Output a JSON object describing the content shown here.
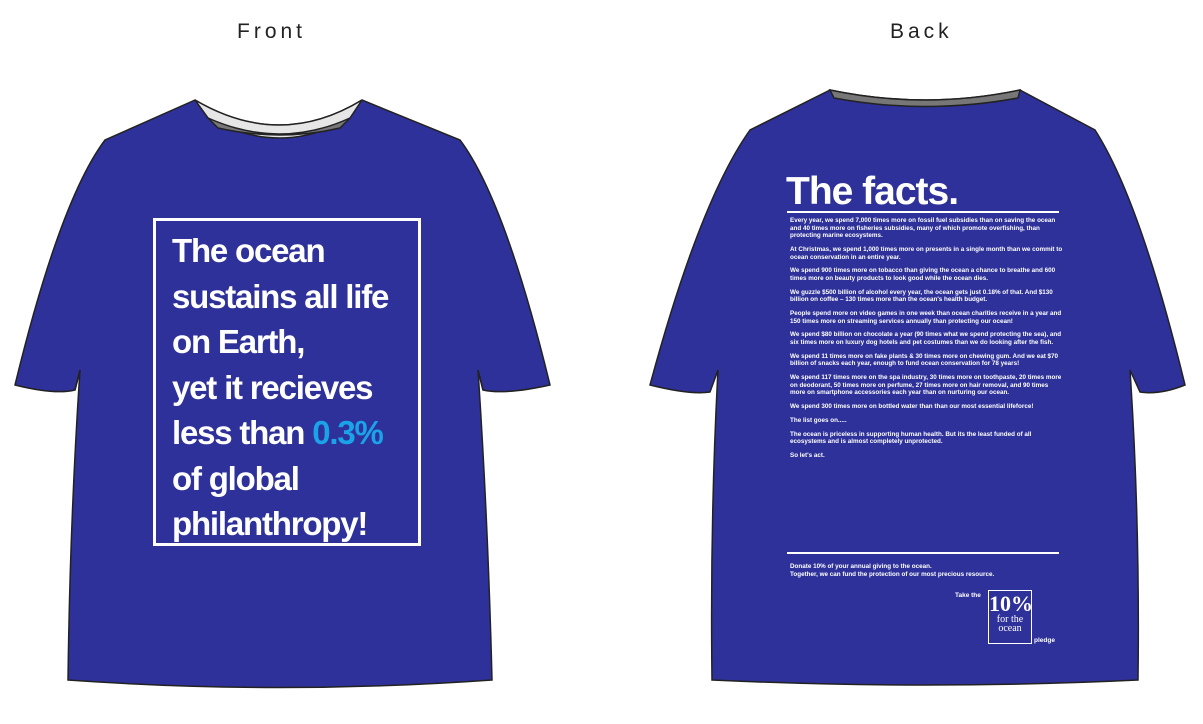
{
  "labels": {
    "front": "Front",
    "back": "Back"
  },
  "colors": {
    "shirt": "#2e3199",
    "highlight": "#1aa3e8",
    "text": "#ffffff"
  },
  "front": {
    "lines": [
      "The ocean",
      "sustains all life",
      "on Earth,",
      "yet it recieves"
    ],
    "line5_prefix": "less than ",
    "highlight": "0.3%",
    "lines_after": [
      "of global",
      "philanthropy!"
    ]
  },
  "back": {
    "title": "The facts.",
    "facts": [
      "Every year, we spend 7,000 times more on fossil fuel subsidies than on saving the ocean and 40 times more on fisheries subsidies, many of which promote overfishing, than protecting marine ecosystems.",
      "At Christmas, we spend 1,000 times more on presents in a single month than we commit to ocean conservation in an entire year.",
      "We spend 900 times more on tobacco than giving the ocean a chance to breathe and 600 times more on beauty products to look good while the ocean dies.",
      "We guzzle $500 billion of alcohol every year, the ocean gets just 0.18% of that.  And $130 billion on coffee – 130 times more than the ocean's health budget.",
      "People spend more on video games in one week than ocean charities receive in a year and 150 times more on streaming services annually than protecting our ocean!",
      "We spend $80 billion on chocolate a year (90 times what we spend protecting the sea), and six times more on luxury dog hotels and pet costumes than we do looking after the fish.",
      "We spend 11 times more on fake plants & 30 times more on chewing gum. And we eat $70 billion of snacks each year, enough to fund ocean conservation for 78 years!",
      "We spend 117 times more on the spa industry, 30 times more on toothpaste, 20 times more on deodorant, 50 times more on perfume, 27 times more on hair removal, and 90 times more on smartphone accessories each year than on nurturing our ocean.",
      "We spend 300 times more on bottled water than than our most essential lifeforce!",
      "The list goes on.....",
      "The ocean is priceless in supporting human health. But its the least funded of all ecosystems and is almost completely unprotected.",
      "So let's act."
    ],
    "cta_line1": "Donate 10% of your annual giving to the ocean.",
    "cta_line2": "Together, we can fund the protection of our most precious resource.",
    "take_the": "Take the",
    "logo": {
      "big": "10%",
      "line1": "for the",
      "line2": "ocean"
    },
    "pledge": "pledge"
  }
}
